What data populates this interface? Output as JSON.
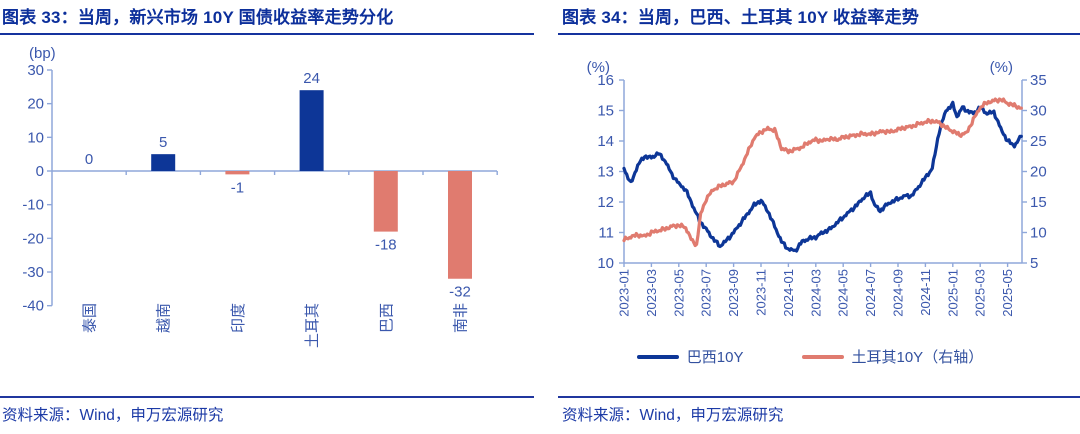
{
  "colors": {
    "navy": "#0d3697",
    "salmon": "#e07b6f",
    "title_navy": "#0c2f9b",
    "axis_line": "#8fa7da",
    "axis_text": "#3b58ad",
    "rule_navy": "#20369e",
    "source_navy": "#1c3aa6"
  },
  "left_panel": {
    "title": "图表 33：当周，新兴市场 10Y 国债收益率走势分化",
    "source": "资料来源：Wind，申万宏源研究"
  },
  "right_panel": {
    "title": "图表 34：当周，巴西、土耳其 10Y 收益率走势",
    "source": "资料来源：Wind，申万宏源研究"
  },
  "chart_data": [
    {
      "type": "bar",
      "title": "当周，新兴市场 10Y 国债收益率走势分化",
      "unit_label": "(bp)",
      "categories": [
        "泰国",
        "越南",
        "印度",
        "土耳其",
        "巴西",
        "南非"
      ],
      "values": [
        0,
        5,
        -1,
        24,
        -18,
        -32
      ],
      "ylim": [
        -40,
        30
      ],
      "ytick_step": 10,
      "positive_color": "#0d3697",
      "negative_color": "#e07b6f",
      "grid": false,
      "value_labels": [
        "0",
        "5",
        "-1",
        "24",
        "-18",
        "-32"
      ]
    },
    {
      "type": "line",
      "title": "当周，巴西、土耳其 10Y 收益率走势",
      "left_axis": {
        "label": "(%)",
        "min": 10,
        "max": 16,
        "step": 1
      },
      "right_axis": {
        "label": "(%)",
        "min": 5,
        "max": 35,
        "step": 5
      },
      "x_tick_labels": [
        "2023-01",
        "2023-03",
        "2023-05",
        "2023-07",
        "2023-09",
        "2023-11",
        "2024-01",
        "2024-03",
        "2024-05",
        "2024-07",
        "2024-09",
        "2024-11",
        "2025-01",
        "2025-03",
        "2025-05"
      ],
      "x_months_span": 29,
      "grid": false,
      "legend_position": "bottom",
      "series": [
        {
          "name": "巴西10Y",
          "axis": "left",
          "color": "#0d3697",
          "x": [
            0,
            0.5,
            1,
            1.5,
            2,
            2.5,
            3,
            3.5,
            4,
            4.5,
            5,
            5.5,
            6,
            6.5,
            7,
            7.5,
            8,
            8.5,
            9,
            9.5,
            10,
            10.5,
            11,
            11.5,
            12,
            12.5,
            13,
            13.5,
            14,
            14.5,
            15,
            15.5,
            16,
            16.5,
            17,
            17.5,
            18,
            18.3,
            18.7,
            19,
            19.5,
            20,
            20.5,
            21,
            21.5,
            22,
            22.5,
            23,
            23.5,
            24,
            24.3,
            24.7,
            25,
            25.5,
            26,
            26.5,
            27,
            27.5,
            28,
            28.5,
            29
          ],
          "values": [
            13.1,
            12.6,
            13.2,
            13.5,
            13.45,
            13.6,
            13.35,
            12.9,
            12.6,
            12.4,
            11.9,
            11.4,
            11.1,
            10.8,
            10.55,
            10.75,
            11.0,
            11.3,
            11.6,
            11.9,
            12.05,
            11.7,
            11.2,
            10.7,
            10.45,
            10.4,
            10.7,
            10.8,
            10.85,
            11.0,
            11.1,
            11.3,
            11.5,
            11.7,
            11.9,
            12.15,
            12.3,
            11.9,
            11.7,
            11.85,
            12.0,
            12.1,
            12.2,
            12.2,
            12.5,
            12.8,
            13.1,
            14.3,
            15.0,
            15.2,
            14.8,
            15.1,
            15.0,
            14.9,
            15.1,
            14.9,
            14.95,
            14.4,
            14.0,
            13.85,
            14.15
          ]
        },
        {
          "name": "土耳其10Y（右轴）",
          "axis": "right",
          "color": "#e07b6f",
          "x": [
            0,
            0.5,
            1,
            1.5,
            2,
            2.5,
            3,
            3.5,
            4,
            4.5,
            5,
            5.3,
            5.6,
            6,
            6.5,
            7,
            7.5,
            8,
            8.5,
            9,
            9.5,
            10,
            10.5,
            11,
            11.5,
            12,
            12.5,
            13,
            13.5,
            14,
            14.5,
            15,
            15.5,
            16,
            16.5,
            17,
            17.5,
            18,
            18.5,
            19,
            19.5,
            20,
            20.5,
            21,
            21.5,
            22,
            22.5,
            23,
            23.5,
            24,
            24.5,
            25,
            25.5,
            26,
            26.5,
            27,
            27.5,
            28,
            28.5,
            29
          ],
          "values": [
            8.8,
            9.3,
            9.6,
            9.4,
            10.0,
            10.3,
            10.6,
            11.0,
            11.2,
            10.8,
            8.5,
            8.0,
            13.0,
            15.5,
            17.0,
            17.6,
            18.0,
            18.3,
            20.5,
            23.0,
            25.5,
            26.5,
            27.0,
            26.8,
            23.8,
            23.3,
            23.6,
            24.0,
            24.8,
            25.2,
            25.0,
            25.4,
            25.2,
            25.6,
            25.8,
            26.0,
            26.2,
            26.1,
            26.4,
            26.6,
            26.5,
            26.9,
            27.2,
            27.4,
            27.8,
            28.1,
            28.3,
            28.0,
            27.2,
            26.6,
            26.0,
            26.3,
            28.5,
            30.5,
            31.3,
            31.6,
            31.8,
            31.2,
            30.8,
            30.4
          ]
        }
      ]
    }
  ]
}
